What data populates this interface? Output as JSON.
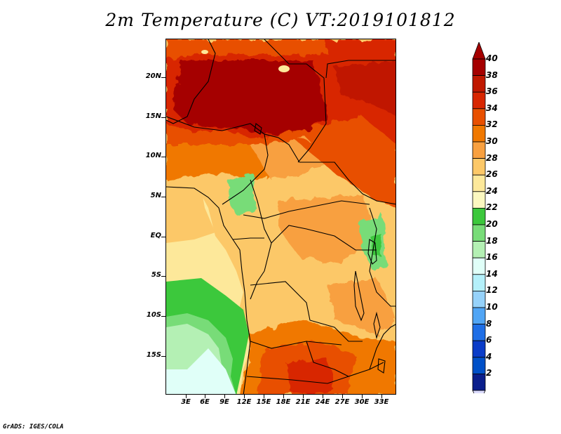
{
  "title": "2m Temperature (C) VT:2019101812",
  "credit": "GrADS: IGES/COLA",
  "map": {
    "variable": "2m Temperature",
    "units": "C",
    "valid_time": "2019101812",
    "lat_labels": [
      "20N",
      "15N",
      "10N",
      "5N",
      "EQ",
      "5S",
      "10S",
      "15S"
    ],
    "lon_labels": [
      "3E",
      "6E",
      "9E",
      "12E",
      "15E",
      "18E",
      "21E",
      "24E",
      "27E",
      "30E",
      "33E"
    ]
  },
  "colorbar": {
    "labels": [
      "40",
      "38",
      "36",
      "34",
      "32",
      "30",
      "28",
      "26",
      "24",
      "22",
      "20",
      "18",
      "16",
      "14",
      "12",
      "10",
      "8",
      "6",
      "4",
      "2"
    ],
    "colors": [
      "#a50000",
      "#c01800",
      "#d82600",
      "#e85000",
      "#f07800",
      "#f8a040",
      "#fcc868",
      "#fde89a",
      "#fcf8c0",
      "#3cc83c",
      "#78dc78",
      "#b4f0b4",
      "#e0fff8",
      "#b4f0fa",
      "#96d2fa",
      "#50a5f5",
      "#1e6ee6",
      "#0a3cc8",
      "#0050c8",
      "#0a1e8c"
    ],
    "above_color": "#a50000",
    "below_color": "#dcdcff"
  }
}
